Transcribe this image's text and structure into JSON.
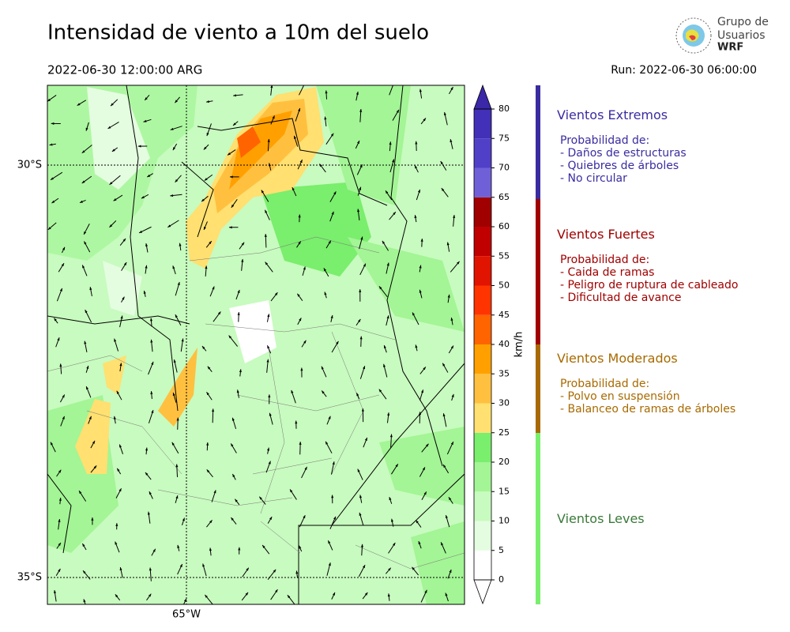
{
  "header": {
    "title": "Intensidad de viento a 10m del suelo",
    "valid_time": "2022-06-30 12:00:00 ARG",
    "run": "Run: 2022-06-30 06:00:00",
    "logo": [
      "Grupo de",
      "Usuarios",
      "WRF"
    ]
  },
  "map": {
    "lat_labels": [
      "30°S",
      "35°S"
    ],
    "lon_labels": [
      "65°W"
    ]
  },
  "colorbar": {
    "label": "km/h",
    "ticks": [
      0,
      5,
      10,
      15,
      20,
      25,
      30,
      35,
      40,
      45,
      50,
      55,
      60,
      65,
      70,
      75,
      80
    ],
    "colors": [
      "#ffffff",
      "#e4fde0",
      "#c8fbbf",
      "#a3f595",
      "#7aee6d",
      "#ffe070",
      "#ffc040",
      "#ffa000",
      "#ff6400",
      "#ff3400",
      "#e01400",
      "#c00000",
      "#a00000",
      "#7060d8",
      "#5040c8",
      "#4230b8"
    ],
    "over_color": "#3a28a8"
  },
  "legend": [
    {
      "title": "Vientos Extremos",
      "color": "#3a2ca0",
      "lines": [
        "Probabilidad de:",
        "- Daños de estructuras",
        "- Quiebres de árboles",
        "- No circular"
      ]
    },
    {
      "title": "Vientos Fuertes",
      "color": "#a00000",
      "lines": [
        "Probabilidad de:",
        "- Caida de ramas",
        "- Peligro de ruptura de cableado",
        "- Dificultad de avance"
      ]
    },
    {
      "title": "Vientos Moderados",
      "color": "#a86a00",
      "lines": [
        "Probabilidad de:",
        "- Polvo en suspensión",
        "- Balanceo de ramas de árboles"
      ]
    },
    {
      "title": "Vientos Leves",
      "color": "#3a7a3a"
    }
  ]
}
